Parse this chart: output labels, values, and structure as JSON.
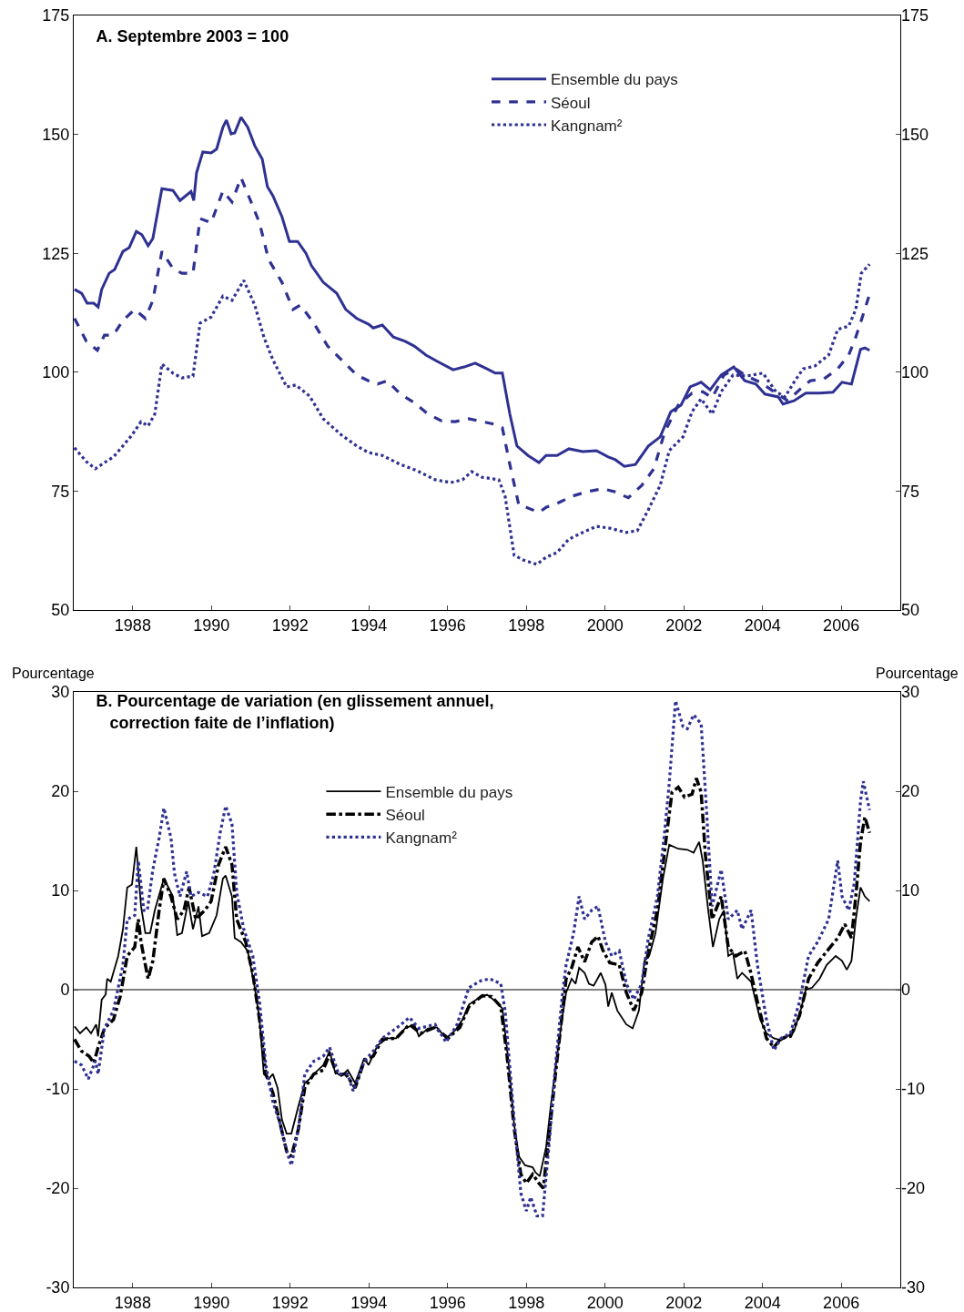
{
  "chart_data": [
    {
      "type": "line",
      "title": "A. Septembre 2003 = 100",
      "xlim": [
        1986.5,
        2007.5
      ],
      "xticks": [
        1988,
        1990,
        1992,
        1994,
        1996,
        1998,
        2000,
        2002,
        2004,
        2006
      ],
      "ylim": [
        50,
        175
      ],
      "yticks": [
        50,
        75,
        100,
        125,
        150,
        175
      ],
      "y2lim": [
        50,
        175
      ],
      "y2ticks": [
        50,
        75,
        100,
        125,
        150,
        175
      ],
      "legend": "top right",
      "series": [
        {
          "name": "Ensemble du pays",
          "color": "#2e3192",
          "line_style": "solid",
          "x": [
            1986.52,
            1986.7,
            1986.84,
            1987.01,
            1987.12,
            1987.21,
            1987.4,
            1987.54,
            1987.75,
            1987.91,
            1988.09,
            1988.23,
            1988.39,
            1988.51,
            1988.74,
            1989.02,
            1989.2,
            1989.48,
            1989.55,
            1989.62,
            1989.78,
            1989.99,
            1990.13,
            1990.29,
            1990.38,
            1990.5,
            1990.59,
            1990.75,
            1990.92,
            1991.1,
            1991.29,
            1991.42,
            1991.56,
            1991.79,
            1991.98,
            1992.19,
            1992.4,
            1992.54,
            1992.84,
            1993.18,
            1993.41,
            1993.69,
            1993.99,
            1994.11,
            1994.34,
            1994.62,
            1994.92,
            1995.15,
            1995.45,
            1995.73,
            1996.14,
            1996.42,
            1996.7,
            1997.0,
            1997.21,
            1997.39,
            1997.58,
            1997.76,
            1998.04,
            1998.32,
            1998.5,
            1998.78,
            1999.08,
            1999.43,
            1999.78,
            2000.08,
            2000.26,
            2000.49,
            2000.77,
            2001.1,
            2001.4,
            2001.67,
            2001.93,
            2002.16,
            2002.44,
            2002.67,
            2002.95,
            2003.27,
            2003.55,
            2003.83,
            2004.06,
            2004.4,
            2004.52,
            2004.8,
            2005.1,
            2005.45,
            2005.79,
            2006.02,
            2006.26,
            2006.49,
            2006.6,
            2006.72
          ],
          "values": [
            117.4,
            116.6,
            114.5,
            114.5,
            113.7,
            117.4,
            120.8,
            121.6,
            125.4,
            126.2,
            129.6,
            128.9,
            126.6,
            128.1,
            138.6,
            138.2,
            136.1,
            138.0,
            136.1,
            141.9,
            146.3,
            146.1,
            146.9,
            151.5,
            153.0,
            150.1,
            150.3,
            153.6,
            151.5,
            147.6,
            144.8,
            139.0,
            137.1,
            132.7,
            127.5,
            127.5,
            125.0,
            122.4,
            118.9,
            116.6,
            113.2,
            111.3,
            110.1,
            109.3,
            109.9,
            107.4,
            106.5,
            105.5,
            103.6,
            102.3,
            100.5,
            101.1,
            101.9,
            100.7,
            99.8,
            99.8,
            91.2,
            84.5,
            82.5,
            81.0,
            82.5,
            82.5,
            83.9,
            83.3,
            83.5,
            82.2,
            81.6,
            80.2,
            80.6,
            84.5,
            86.4,
            91.7,
            93.1,
            96.9,
            97.9,
            96.3,
            99.4,
            101.1,
            98.2,
            97.5,
            95.4,
            94.8,
            93.3,
            94.0,
            95.6,
            95.6,
            95.8,
            97.9,
            97.5,
            104.8,
            105.1,
            104.6
          ]
        },
        {
          "name": "Séoul",
          "color": "#2e3192",
          "line_style": "dashed",
          "x": [
            1986.52,
            1986.82,
            1987.1,
            1987.28,
            1987.51,
            1987.75,
            1988.05,
            1988.32,
            1988.51,
            1988.74,
            1989.02,
            1989.25,
            1989.53,
            1989.71,
            1989.99,
            1990.29,
            1990.52,
            1990.75,
            1990.99,
            1991.22,
            1991.45,
            1991.79,
            1992.07,
            1992.26,
            1992.6,
            1992.95,
            1993.3,
            1993.69,
            1993.99,
            1994.22,
            1994.46,
            1994.8,
            1995.15,
            1995.5,
            1995.84,
            1996.19,
            1996.54,
            1996.88,
            1997.23,
            1997.39,
            1997.58,
            1997.81,
            1998.0,
            1998.32,
            1998.5,
            1998.78,
            1999.15,
            1999.55,
            1999.94,
            2000.24,
            2000.59,
            2000.93,
            2001.24,
            2001.51,
            2001.86,
            2002.21,
            2002.48,
            2002.72,
            2003.02,
            2003.32,
            2003.59,
            2003.94,
            2004.29,
            2004.64,
            2004.94,
            2005.21,
            2005.56,
            2005.91,
            2006.19,
            2006.37,
            2006.56,
            2006.72
          ],
          "values": [
            111.3,
            106.5,
            104.6,
            107.8,
            107.8,
            110.9,
            113.2,
            111.3,
            115.1,
            125.4,
            121.8,
            120.8,
            120.8,
            132.3,
            131.4,
            138.1,
            135.8,
            140.9,
            136.1,
            131.4,
            123.7,
            118.9,
            113.2,
            114.1,
            110.3,
            105.5,
            102.6,
            99.4,
            98.2,
            97.5,
            98.2,
            95.4,
            93.6,
            91.2,
            89.8,
            89.6,
            90.2,
            89.6,
            89.0,
            88.3,
            80.6,
            72.0,
            71.6,
            70.5,
            71.6,
            72.4,
            73.9,
            74.9,
            75.5,
            74.9,
            73.6,
            76.2,
            79.7,
            87.3,
            93.1,
            95.6,
            95.9,
            94.6,
            99.4,
            100.7,
            99.2,
            97.9,
            95.9,
            94.0,
            96.3,
            98.2,
            98.6,
            100.7,
            103.6,
            107.4,
            112.2,
            116.4
          ]
        },
        {
          "name": "Kangnam²",
          "color": "#2e3192",
          "line_style": "dotted",
          "x": [
            1986.52,
            1986.82,
            1987.05,
            1987.28,
            1987.51,
            1987.75,
            1987.98,
            1988.21,
            1988.39,
            1988.56,
            1988.74,
            1989.02,
            1989.25,
            1989.53,
            1989.71,
            1989.99,
            1990.29,
            1990.52,
            1990.82,
            1991.1,
            1991.33,
            1991.56,
            1991.91,
            1992.14,
            1992.49,
            1992.84,
            1993.3,
            1993.69,
            1993.99,
            1994.34,
            1994.8,
            1995.22,
            1995.68,
            1996.08,
            1996.38,
            1996.61,
            1996.88,
            1997.3,
            1997.46,
            1997.69,
            1997.93,
            1998.27,
            1998.5,
            1998.78,
            1999.08,
            1999.43,
            1999.78,
            2000.12,
            2000.54,
            2000.82,
            2001.1,
            2001.4,
            2001.63,
            2001.98,
            2002.21,
            2002.44,
            2002.72,
            2002.95,
            2003.25,
            2003.59,
            2004.01,
            2004.34,
            2004.57,
            2004.8,
            2005.03,
            2005.33,
            2005.68,
            2005.91,
            2006.19,
            2006.37,
            2006.51,
            2006.72
          ],
          "values": [
            84.1,
            81.2,
            79.7,
            81.0,
            82.2,
            84.5,
            86.8,
            89.6,
            88.7,
            91.2,
            101.7,
            99.8,
            98.8,
            99.2,
            110.3,
            111.6,
            116.0,
            115.1,
            119.3,
            114.1,
            107.4,
            102.6,
            96.9,
            97.3,
            95.0,
            90.2,
            86.8,
            84.5,
            83.1,
            82.5,
            80.6,
            79.3,
            77.4,
            76.8,
            77.4,
            79.1,
            77.9,
            77.4,
            73.9,
            61.5,
            60.5,
            59.6,
            61.1,
            62.1,
            64.9,
            66.3,
            67.6,
            67.2,
            66.3,
            66.7,
            71.1,
            76.2,
            83.5,
            86.4,
            91.7,
            94.4,
            91.2,
            95.9,
            99.4,
            99.2,
            99.8,
            95.9,
            94.8,
            97.9,
            100.7,
            101.3,
            103.6,
            109.0,
            109.7,
            113.2,
            120.8,
            122.7
          ]
        }
      ]
    },
    {
      "type": "line",
      "title": "B. Pourcentage de variation (en glissement annuel,\ncorrection faite de l’inflation)",
      "ylabel": "Pourcentage",
      "y2label": "Pourcentage",
      "xlim": [
        1986.5,
        2007.5
      ],
      "xticks": [
        1988,
        1990,
        1992,
        1994,
        1996,
        1998,
        2000,
        2002,
        2004,
        2006
      ],
      "ylim": [
        -30,
        30
      ],
      "yticks": [
        -30,
        -20,
        -10,
        0,
        10,
        20,
        30
      ],
      "y2lim": [
        -30,
        30
      ],
      "y2ticks": [
        -30,
        -20,
        -10,
        0,
        10,
        20,
        30
      ],
      "legend": "top",
      "ref_lines": [
        {
          "axis": "y",
          "value": 0,
          "color": "#000000"
        }
      ],
      "series": [
        {
          "name": "Ensemble du pays",
          "color": "#000000",
          "line_style": "solid",
          "x": [
            1986.52,
            1986.66,
            1986.82,
            1986.94,
            1987.07,
            1987.12,
            1987.21,
            1987.31,
            1987.35,
            1987.44,
            1987.63,
            1987.75,
            1987.86,
            1987.98,
            1988.09,
            1988.21,
            1988.32,
            1988.44,
            1988.56,
            1988.79,
            1989.02,
            1989.13,
            1989.25,
            1989.41,
            1989.53,
            1989.67,
            1989.76,
            1989.94,
            1990.13,
            1990.29,
            1990.36,
            1990.52,
            1990.59,
            1990.75,
            1990.92,
            1991.1,
            1991.22,
            1991.33,
            1991.45,
            1991.56,
            1991.68,
            1991.79,
            1991.91,
            1992.03,
            1992.21,
            1992.37,
            1992.49,
            1992.6,
            1992.84,
            1993.0,
            1993.14,
            1993.3,
            1993.46,
            1993.65,
            1993.88,
            1993.99,
            1994.22,
            1994.46,
            1994.69,
            1994.92,
            1995.15,
            1995.27,
            1995.5,
            1995.73,
            1995.96,
            1996.19,
            1996.38,
            1996.54,
            1996.77,
            1997.0,
            1997.23,
            1997.39,
            1997.53,
            1997.69,
            1997.81,
            1997.97,
            1998.16,
            1998.23,
            1998.34,
            1998.5,
            1998.62,
            1998.78,
            1998.92,
            1999.01,
            1999.15,
            1999.25,
            1999.34,
            1999.48,
            1999.59,
            1999.71,
            1999.89,
            2000.01,
            2000.08,
            2000.17,
            2000.31,
            2000.54,
            2000.7,
            2000.86,
            2001.0,
            2001.12,
            2001.28,
            2001.47,
            2001.63,
            2001.86,
            2002.09,
            2002.25,
            2002.39,
            2002.48,
            2002.62,
            2002.74,
            2002.9,
            2003.02,
            2003.13,
            2003.25,
            2003.36,
            2003.48,
            2003.71,
            2003.94,
            2004.1,
            2004.29,
            2004.47,
            2004.64,
            2004.8,
            2004.98,
            2005.1,
            2005.26,
            2005.45,
            2005.63,
            2005.86,
            2006.02,
            2006.14,
            2006.26,
            2006.37,
            2006.49,
            2006.6,
            2006.72
          ],
          "values": [
            -3.7,
            -4.4,
            -3.8,
            -4.4,
            -3.5,
            -4.7,
            -1.0,
            -0.5,
            1.1,
            0.8,
            3.4,
            6.1,
            10.3,
            10.6,
            14.4,
            8.4,
            5.7,
            5.7,
            8.0,
            11.2,
            9.4,
            5.5,
            5.7,
            8.9,
            6.1,
            8.4,
            5.4,
            5.7,
            7.5,
            11.2,
            11.5,
            9.4,
            5.2,
            4.8,
            3.9,
            0.2,
            -3.0,
            -8.5,
            -9.0,
            -8.5,
            -9.9,
            -13.1,
            -14.5,
            -14.5,
            -11.7,
            -9.4,
            -9.0,
            -8.5,
            -7.6,
            -6.2,
            -8.3,
            -8.7,
            -8.1,
            -9.4,
            -6.9,
            -7.6,
            -5.6,
            -4.9,
            -4.9,
            -3.9,
            -3.5,
            -4.7,
            -3.9,
            -3.8,
            -4.9,
            -4.1,
            -3.0,
            -1.5,
            -0.9,
            -0.5,
            -1.2,
            -1.9,
            -6.7,
            -13.6,
            -16.8,
            -17.7,
            -17.9,
            -18.4,
            -18.8,
            -15.9,
            -11.7,
            -6.7,
            -2.6,
            -0.3,
            1.1,
            0.6,
            2.2,
            1.7,
            0.6,
            0.4,
            1.7,
            0.5,
            -1.7,
            -0.3,
            -2.1,
            -3.5,
            -3.9,
            -2.1,
            2.9,
            3.4,
            5.7,
            11.2,
            14.6,
            14.2,
            14.1,
            13.8,
            14.9,
            13.0,
            8.0,
            4.3,
            7.1,
            8.0,
            3.4,
            3.7,
            1.1,
            1.7,
            0.8,
            -3.0,
            -4.4,
            -4.9,
            -5.1,
            -4.7,
            -4.2,
            -1.9,
            0.0,
            0.2,
            1.1,
            2.5,
            3.4,
            2.9,
            2.0,
            2.9,
            7.1,
            10.3,
            9.4,
            8.9
          ]
        },
        {
          "name": "Séoul",
          "color": "#000000",
          "line_style": "dashdot",
          "x": [
            1986.52,
            1986.7,
            1986.89,
            1987.01,
            1987.12,
            1987.28,
            1987.51,
            1987.68,
            1987.86,
            1988.05,
            1988.14,
            1988.21,
            1988.32,
            1988.39,
            1988.51,
            1988.67,
            1988.79,
            1988.97,
            1989.13,
            1989.3,
            1989.43,
            1989.6,
            1989.83,
            1989.99,
            1990.18,
            1990.36,
            1990.52,
            1990.64,
            1990.87,
            1991.05,
            1991.22,
            1991.38,
            1991.56,
            1991.75,
            1991.91,
            1992.03,
            1992.21,
            1992.37,
            1992.6,
            1992.84,
            1993.0,
            1993.18,
            1993.41,
            1993.65,
            1993.88,
            1994.11,
            1994.34,
            1994.69,
            1995.03,
            1995.31,
            1995.68,
            1996.01,
            1996.31,
            1996.54,
            1996.88,
            1997.12,
            1997.35,
            1997.51,
            1997.69,
            1997.86,
            1998.0,
            1998.16,
            1998.32,
            1998.43,
            1998.57,
            1998.74,
            1998.92,
            1999.01,
            1999.15,
            1999.31,
            1999.48,
            1999.66,
            1999.82,
            1999.94,
            2000.12,
            2000.36,
            2000.54,
            2000.73,
            2000.93,
            2001.1,
            2001.33,
            2001.51,
            2001.7,
            2001.86,
            2002.02,
            2002.21,
            2002.32,
            2002.44,
            2002.55,
            2002.72,
            2002.95,
            2003.13,
            2003.32,
            2003.55,
            2003.71,
            2003.87,
            2004.1,
            2004.29,
            2004.47,
            2004.71,
            2004.94,
            2005.17,
            2005.4,
            2005.68,
            2005.91,
            2006.09,
            2006.26,
            2006.37,
            2006.49,
            2006.6,
            2006.72
          ],
          "values": [
            -5.0,
            -6.2,
            -6.7,
            -7.4,
            -5.8,
            -3.9,
            -3.0,
            -0.7,
            3.4,
            4.3,
            7.1,
            4.8,
            2.5,
            1.1,
            2.9,
            8.0,
            11.2,
            9.4,
            7.1,
            8.0,
            10.3,
            7.1,
            8.0,
            8.9,
            12.6,
            14.4,
            12.6,
            7.1,
            4.8,
            1.6,
            -3.0,
            -8.5,
            -10.4,
            -13.6,
            -16.3,
            -16.8,
            -14.0,
            -9.9,
            -8.5,
            -8.1,
            -6.5,
            -8.5,
            -8.5,
            -9.9,
            -7.2,
            -6.7,
            -5.0,
            -4.9,
            -3.5,
            -4.4,
            -3.8,
            -4.9,
            -3.8,
            -1.7,
            -0.6,
            -0.7,
            -1.7,
            -6.7,
            -14.0,
            -18.6,
            -19.5,
            -18.6,
            -19.5,
            -20.0,
            -15.0,
            -8.5,
            -2.1,
            1.1,
            2.2,
            4.3,
            2.8,
            4.8,
            5.4,
            4.0,
            2.7,
            2.5,
            -0.3,
            -2.1,
            -0.3,
            3.9,
            8.0,
            13.9,
            19.9,
            20.4,
            19.4,
            19.7,
            21.3,
            19.9,
            13.5,
            7.1,
            9.4,
            4.3,
            3.4,
            3.9,
            1.6,
            -1.2,
            -4.9,
            -5.8,
            -4.9,
            -4.7,
            -2.6,
            1.1,
            2.7,
            4.1,
            5.2,
            6.6,
            5.2,
            9.4,
            14.9,
            17.4,
            15.8
          ]
        },
        {
          "name": "Kangnam²",
          "color": "#2e3192",
          "line_style": "dotted",
          "x": [
            1986.52,
            1986.7,
            1986.87,
            1987.05,
            1987.12,
            1987.28,
            1987.51,
            1987.75,
            1987.86,
            1988.05,
            1988.14,
            1988.28,
            1988.37,
            1988.51,
            1988.67,
            1988.79,
            1988.97,
            1989.06,
            1989.2,
            1989.37,
            1989.48,
            1989.67,
            1989.9,
            1990.06,
            1990.22,
            1990.36,
            1990.52,
            1990.64,
            1990.82,
            1991.05,
            1991.22,
            1991.38,
            1991.56,
            1991.75,
            1991.91,
            1992.03,
            1992.21,
            1992.37,
            1992.6,
            1992.84,
            1993.0,
            1993.23,
            1993.46,
            1993.6,
            1993.88,
            1994.11,
            1994.34,
            1994.69,
            1995.03,
            1995.27,
            1995.68,
            1995.96,
            1996.24,
            1996.54,
            1996.84,
            1997.07,
            1997.35,
            1997.46,
            1997.69,
            1997.86,
            1998.0,
            1998.11,
            1998.27,
            1998.41,
            1998.57,
            1998.74,
            1998.92,
            1999.01,
            1999.2,
            1999.34,
            1999.48,
            1999.66,
            1999.82,
            2000.01,
            2000.17,
            2000.36,
            2000.54,
            2000.73,
            2000.93,
            2001.1,
            2001.33,
            2001.51,
            2001.63,
            2001.79,
            2001.98,
            2002.09,
            2002.25,
            2002.44,
            2002.55,
            2002.72,
            2002.95,
            2003.13,
            2003.36,
            2003.48,
            2003.71,
            2003.87,
            2004.1,
            2004.29,
            2004.47,
            2004.71,
            2004.94,
            2005.17,
            2005.4,
            2005.68,
            2005.91,
            2006.02,
            2006.19,
            2006.33,
            2006.49,
            2006.56,
            2006.72
          ],
          "values": [
            -7.2,
            -7.6,
            -9.0,
            -7.2,
            -8.5,
            -3.9,
            -2.1,
            2.5,
            7.1,
            7.5,
            13.0,
            8.0,
            8.0,
            12.1,
            15.3,
            18.3,
            15.3,
            11.7,
            9.4,
            11.9,
            9.4,
            9.8,
            9.4,
            11.7,
            15.8,
            18.5,
            16.7,
            9.8,
            6.1,
            3.4,
            -1.2,
            -7.6,
            -11.3,
            -13.6,
            -16.3,
            -17.7,
            -14.0,
            -8.5,
            -7.2,
            -6.7,
            -5.8,
            -8.5,
            -8.5,
            -10.2,
            -7.2,
            -6.2,
            -4.9,
            -3.9,
            -2.8,
            -3.9,
            -3.5,
            -5.3,
            -3.5,
            0.2,
            0.9,
            1.1,
            0.6,
            -2.1,
            -13.1,
            -20.5,
            -22.3,
            -20.9,
            -22.8,
            -22.8,
            -15.9,
            -7.6,
            -0.3,
            2.5,
            5.7,
            9.4,
            7.1,
            8.0,
            8.4,
            4.8,
            3.4,
            3.9,
            0.6,
            -1.0,
            0.6,
            5.2,
            9.4,
            15.8,
            20.8,
            29.1,
            26.5,
            26.3,
            27.7,
            26.8,
            19.9,
            8.4,
            12.1,
            7.1,
            8.0,
            6.1,
            8.0,
            2.5,
            -3.0,
            -6.1,
            -4.9,
            -4.4,
            -1.2,
            3.4,
            4.8,
            7.1,
            13.0,
            9.4,
            8.0,
            10.7,
            19.0,
            21.0,
            18.1
          ]
        }
      ]
    }
  ]
}
